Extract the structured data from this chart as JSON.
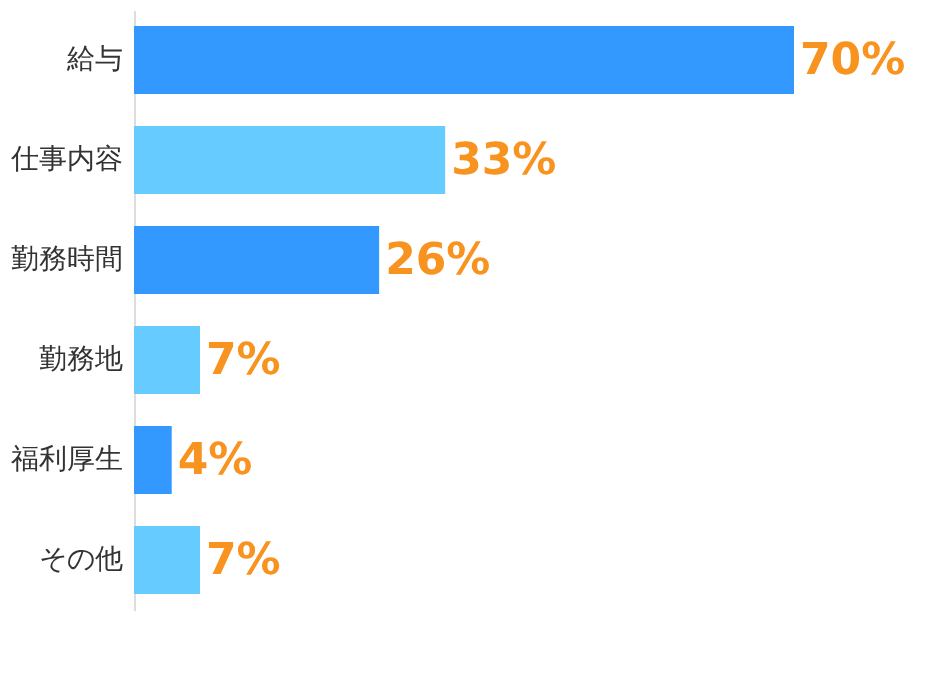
{
  "chart_data": {
    "type": "bar",
    "orientation": "horizontal",
    "categories": [
      "給与",
      "仕事内容",
      "勤務時間",
      "勤務地",
      "福利厚生",
      "その他"
    ],
    "values": [
      70,
      33,
      26,
      7,
      4,
      7
    ],
    "colors": [
      "#3399ff",
      "#66ccff",
      "#3399ff",
      "#66ccff",
      "#3399ff",
      "#66ccff"
    ],
    "value_labels": [
      "70%",
      "33%",
      "26%",
      "7%",
      "4%",
      "7%"
    ]
  }
}
